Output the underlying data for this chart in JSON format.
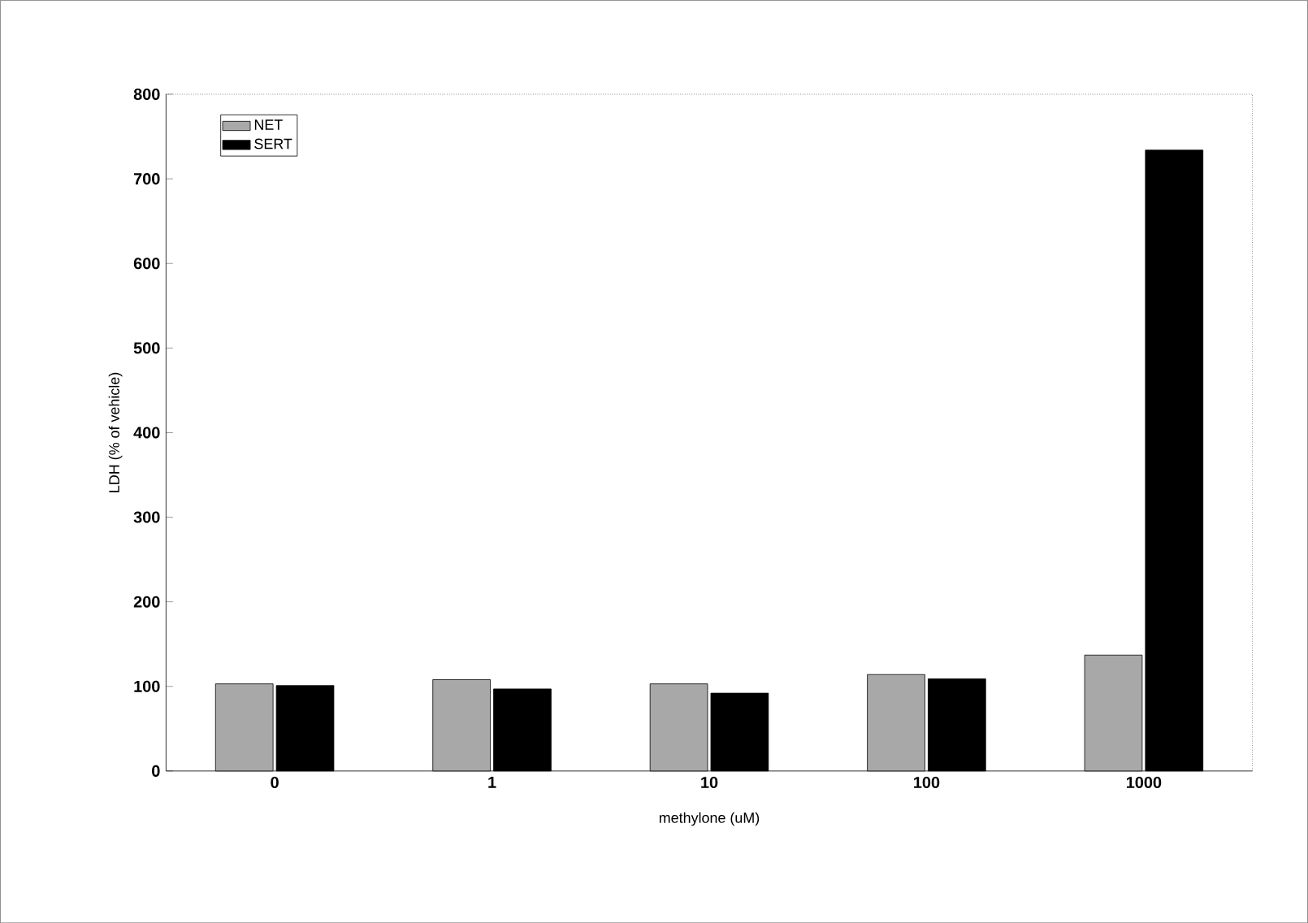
{
  "chart_data": {
    "type": "bar",
    "xlabel": "methylone (uM)",
    "ylabel": "LDH (% of vehicle)",
    "categories": [
      "0",
      "1",
      "10",
      "100",
      "1000"
    ],
    "series": [
      {
        "name": "NET",
        "color": "#a8a8a8",
        "values": [
          103,
          108,
          103,
          114,
          137
        ]
      },
      {
        "name": "SERT",
        "color": "#000000",
        "values": [
          101,
          97,
          92,
          109,
          734
        ]
      }
    ],
    "ylim": [
      0,
      800
    ],
    "yticks": [
      0,
      100,
      200,
      300,
      400,
      500,
      600,
      700,
      800
    ],
    "legend": "top left",
    "grid": false
  }
}
